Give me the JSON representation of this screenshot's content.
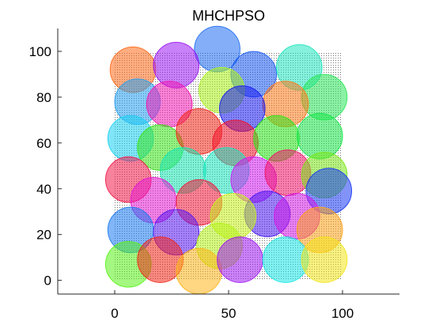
{
  "chart_data": {
    "type": "scatter",
    "title": "MHCHPSO",
    "xlabel": "",
    "ylabel": "",
    "xlim": [
      -25,
      125
    ],
    "ylim": [
      -6,
      110
    ],
    "x_ticks": [
      0,
      50,
      100
    ],
    "x_tick_labels": [
      "0",
      "50",
      "100"
    ],
    "y_ticks": [
      0,
      20,
      40,
      60,
      80,
      100
    ],
    "y_tick_labels": [
      "0",
      "20",
      "40",
      "60",
      "80",
      "100"
    ],
    "grid": false,
    "box": "left-bottom",
    "background_region": {
      "x": [
        0,
        100
      ],
      "y": [
        0,
        100
      ],
      "style": "dense-dot-grid",
      "color": "#000000"
    },
    "circles": [
      {
        "x": 45,
        "y": 101,
        "r": 10,
        "color": "#1f6ef2"
      },
      {
        "x": 8,
        "y": 92,
        "r": 10,
        "color": "#ff6a1a"
      },
      {
        "x": 27,
        "y": 94,
        "r": 10,
        "color": "#9b1af2"
      },
      {
        "x": 61,
        "y": 90,
        "r": 10,
        "color": "#1a5af2"
      },
      {
        "x": 81,
        "y": 93,
        "r": 10,
        "color": "#22e6c0"
      },
      {
        "x": 47,
        "y": 83,
        "r": 10,
        "color": "#aaf21a"
      },
      {
        "x": 10,
        "y": 78,
        "r": 10,
        "color": "#26a0f2"
      },
      {
        "x": 92,
        "y": 80,
        "r": 10,
        "color": "#2ae65a"
      },
      {
        "x": 75,
        "y": 77,
        "r": 10,
        "color": "#ff7a1a"
      },
      {
        "x": 56,
        "y": 75,
        "r": 10,
        "color": "#1a1af2"
      },
      {
        "x": 24,
        "y": 77,
        "r": 10,
        "color": "#f21ab4"
      },
      {
        "x": 7,
        "y": 62,
        "r": 10,
        "color": "#1ad0f2"
      },
      {
        "x": 20,
        "y": 58,
        "r": 10,
        "color": "#3ae61a"
      },
      {
        "x": 37,
        "y": 65,
        "r": 10,
        "color": "#f2281a"
      },
      {
        "x": 53,
        "y": 60,
        "r": 10,
        "color": "#f2142a"
      },
      {
        "x": 71,
        "y": 62,
        "r": 10,
        "color": "#2ae61a"
      },
      {
        "x": 90,
        "y": 63,
        "r": 10,
        "color": "#1ae64a"
      },
      {
        "x": 30,
        "y": 48,
        "r": 10,
        "color": "#1ae6b4"
      },
      {
        "x": 49,
        "y": 48,
        "r": 10,
        "color": "#1ae6c0"
      },
      {
        "x": 6,
        "y": 44,
        "r": 10,
        "color": "#f21a4a"
      },
      {
        "x": 61,
        "y": 44,
        "r": 10,
        "color": "#d21af2"
      },
      {
        "x": 76,
        "y": 47,
        "r": 10,
        "color": "#f2146a"
      },
      {
        "x": 92,
        "y": 46,
        "r": 10,
        "color": "#7ae61a"
      },
      {
        "x": 17,
        "y": 35,
        "r": 10,
        "color": "#e61ad2"
      },
      {
        "x": 37,
        "y": 34,
        "r": 10,
        "color": "#f21a3a"
      },
      {
        "x": 94,
        "y": 39,
        "r": 10,
        "color": "#1a3af2"
      },
      {
        "x": 67,
        "y": 29,
        "r": 10,
        "color": "#4a1af2"
      },
      {
        "x": 80,
        "y": 28,
        "r": 10,
        "color": "#d41ae6"
      },
      {
        "x": 52,
        "y": 28,
        "r": 10,
        "color": "#c6f21a"
      },
      {
        "x": 7,
        "y": 22,
        "r": 10,
        "color": "#1a7af2"
      },
      {
        "x": 27,
        "y": 21,
        "r": 10,
        "color": "#5a1af2"
      },
      {
        "x": 90,
        "y": 22,
        "r": 10,
        "color": "#ffa21a"
      },
      {
        "x": 46,
        "y": 15,
        "r": 10,
        "color": "#b4f21a"
      },
      {
        "x": 6,
        "y": 7,
        "r": 10,
        "color": "#5af21a"
      },
      {
        "x": 20,
        "y": 9,
        "r": 10,
        "color": "#f2281a"
      },
      {
        "x": 37,
        "y": 4,
        "r": 10,
        "color": "#ffb41a"
      },
      {
        "x": 55,
        "y": 9,
        "r": 10,
        "color": "#a01af2"
      },
      {
        "x": 75,
        "y": 9,
        "r": 10,
        "color": "#1ae6e6"
      },
      {
        "x": 92,
        "y": 9,
        "r": 10,
        "color": "#f2e61a"
      }
    ]
  }
}
